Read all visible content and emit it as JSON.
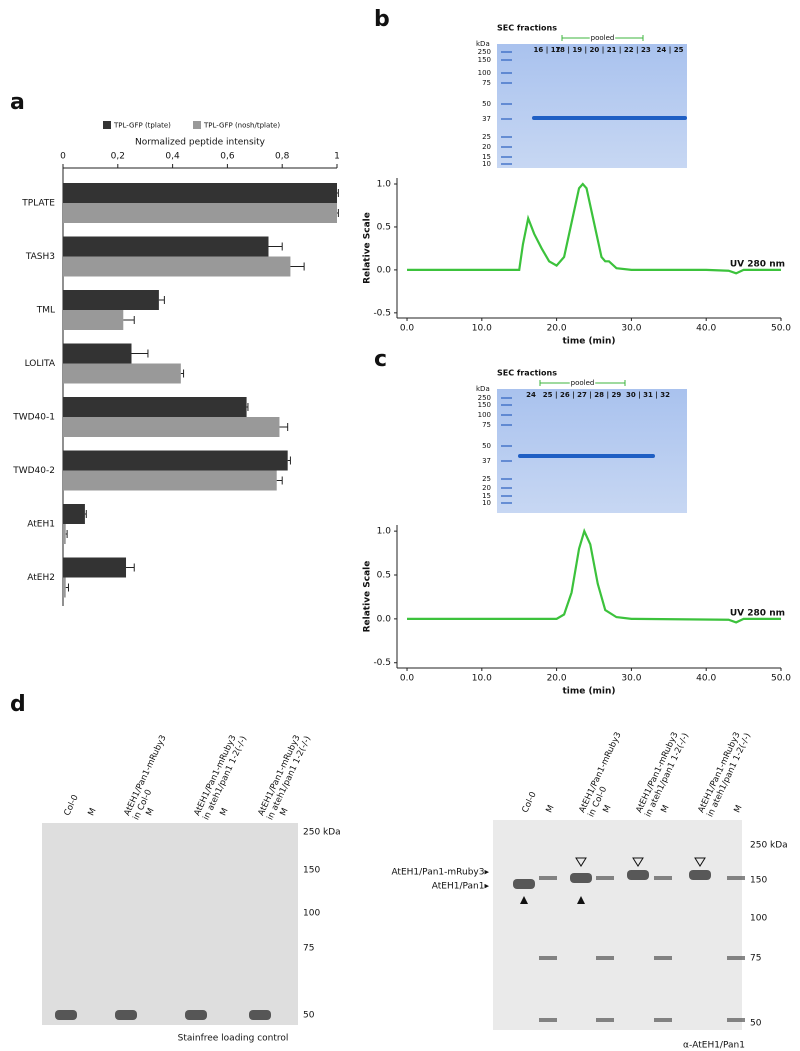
{
  "figure": {
    "panel_labels": [
      "a",
      "b",
      "c",
      "d"
    ]
  },
  "chart_data": [
    {
      "type": "hbar",
      "xlabel": "Normalized peptide intensity",
      "categories": [
        "TPLATE",
        "TASH3",
        "TML",
        "LOLITA",
        "TWD40-1",
        "TWD40-2",
        "AtEH1",
        "AtEH2"
      ],
      "series": [
        {
          "name": "TPL-GFP (tplate)",
          "color": "#333333",
          "values": [
            1.0,
            0.75,
            0.35,
            0.25,
            0.67,
            0.82,
            0.08,
            0.23
          ],
          "errors": [
            0.005,
            0.05,
            0.02,
            0.06,
            0.005,
            0.01,
            0.005,
            0.03
          ]
        },
        {
          "name": "TPL-GFP (nosh/tplate)",
          "color": "#999999",
          "values": [
            1.0,
            0.83,
            0.22,
            0.43,
            0.79,
            0.78,
            0.01,
            0.01
          ],
          "errors": [
            0.005,
            0.05,
            0.04,
            0.01,
            0.03,
            0.02,
            0.005,
            0.01
          ]
        }
      ],
      "xlim": [
        0,
        1
      ],
      "xticks": [
        0,
        {
          "value": 0.2,
          "label": "0,2"
        },
        {
          "value": 0.4,
          "label": "0,4"
        },
        {
          "value": 0.6,
          "label": "0,6"
        },
        {
          "value": 0.8,
          "label": "0,8"
        },
        1
      ]
    },
    {
      "type": "line",
      "xlabel": "time (min)",
      "ylabel": "Relative Scale",
      "x": [
        0,
        15,
        15.5,
        16.2,
        17,
        18,
        19,
        20,
        21,
        22,
        23,
        23.5,
        24,
        25,
        26,
        26.5,
        27,
        28,
        30,
        40,
        43,
        44,
        45,
        50
      ],
      "series": [
        {
          "name": "UV 280 nm",
          "color": "#3cc23c",
          "values": [
            0,
            0,
            0.3,
            0.6,
            0.42,
            0.25,
            0.1,
            0.05,
            0.15,
            0.55,
            0.95,
            1.0,
            0.95,
            0.55,
            0.15,
            0.1,
            0.1,
            0.02,
            0,
            0,
            -0.01,
            -0.04,
            0,
            0
          ]
        }
      ],
      "xlim": [
        -1.34,
        50
      ],
      "ylim": [
        -0.56,
        1.07
      ],
      "xticks": [
        {
          "value": 0,
          "label": "0.0"
        },
        {
          "value": 10,
          "label": "10.0"
        },
        {
          "value": 20,
          "label": "20.0"
        },
        {
          "value": 30,
          "label": "30.0"
        },
        {
          "value": 40,
          "label": "40.0"
        },
        {
          "value": 50,
          "label": "50.0"
        }
      ],
      "yticks": [
        {
          "value": -0.5,
          "label": "-0.5"
        },
        {
          "value": 0,
          "label": "0.0"
        },
        {
          "value": 0.5,
          "label": "0.5"
        },
        {
          "value": 1,
          "label": "1.0"
        }
      ]
    },
    {
      "type": "line",
      "xlabel": "time (min)",
      "ylabel": "Relative Scale",
      "x": [
        0,
        20,
        21,
        22,
        23,
        23.7,
        24.5,
        25.5,
        26.5,
        28,
        30,
        43,
        44,
        45,
        50
      ],
      "series": [
        {
          "name": "UV 280 nm",
          "color": "#3cc23c",
          "values": [
            0,
            0,
            0.05,
            0.3,
            0.8,
            1.0,
            0.85,
            0.4,
            0.1,
            0.02,
            0,
            -0.01,
            -0.04,
            0,
            0
          ]
        }
      ],
      "xlim": [
        -1.34,
        50
      ],
      "ylim": [
        -0.56,
        1.07
      ],
      "xticks": [
        {
          "value": 0,
          "label": "0.0"
        },
        {
          "value": 10,
          "label": "10.0"
        },
        {
          "value": 20,
          "label": "20.0"
        },
        {
          "value": 30,
          "label": "30.0"
        },
        {
          "value": 40,
          "label": "40.0"
        },
        {
          "value": 50,
          "label": "50.0"
        }
      ],
      "yticks": [
        {
          "value": -0.5,
          "label": "-0.5"
        },
        {
          "value": 0,
          "label": "0.0"
        },
        {
          "value": 0.5,
          "label": "0.5"
        },
        {
          "value": 1,
          "label": "1.0"
        }
      ]
    }
  ],
  "gels": {
    "b": {
      "title": "SEC fractions",
      "unit": "kDa",
      "markers": [
        "250",
        "150",
        "100",
        "75",
        "50",
        "37",
        "25",
        "20",
        "15",
        "10"
      ],
      "bracket": "pooled",
      "lanes": [
        "16 | 17",
        "18 | 19 | 20 | 21 | 22 | 23",
        "24 | 25"
      ],
      "lane_colors": [
        "#000000",
        "#3cb43c",
        "#000000"
      ]
    },
    "c": {
      "title": "SEC fractions",
      "unit": "kDa",
      "markers": [
        "250",
        "150",
        "100",
        "75",
        "50",
        "37",
        "25",
        "20",
        "15",
        "10"
      ],
      "bracket": "pooled",
      "lanes": [
        "24",
        "25 | 26 | 27 | 28 | 29",
        "30 | 31 | 32"
      ],
      "lane_colors": [
        "#000000",
        "#3cb43c",
        "#000000"
      ]
    },
    "d_left": {
      "lanes": [
        [
          "Col-0"
        ],
        [
          "M"
        ],
        [
          "AtEH1/Pan1-mRuby3",
          "in Col-0"
        ],
        [
          "M"
        ],
        [
          "AtEH1/Pan1-mRuby3",
          "in ateh1/pan1 1-2(-/-)"
        ],
        [
          "M"
        ],
        [
          "AtEH1/Pan1-mRuby3",
          "in ateh1/pan1 1-2(-/-)"
        ],
        [
          "M"
        ]
      ],
      "markers": [
        "250 kDa",
        "150",
        "100",
        "75",
        "50"
      ],
      "caption": "Stainfree loading control"
    },
    "d_right": {
      "lanes": [
        [
          "Col-0"
        ],
        [
          "M"
        ],
        [
          "AtEH1/Pan1-mRuby3",
          "in Col-0"
        ],
        [
          "M"
        ],
        [
          "AtEH1/Pan1-mRuby3",
          "in ateh1/pan1 1-2(-/-)"
        ],
        [
          "M"
        ],
        [
          "AtEH1/Pan1-mRuby3",
          "in ateh1/pan1 1-2(-/-)"
        ],
        [
          "M"
        ]
      ],
      "markers": [
        "250 kDa",
        "150",
        "100",
        "75",
        "50"
      ],
      "band_labels": [
        "AtEH1/Pan1-mRuby3▸",
        "AtEH1/Pan1▸"
      ],
      "caption": "α-AtEH1/Pan1"
    }
  }
}
